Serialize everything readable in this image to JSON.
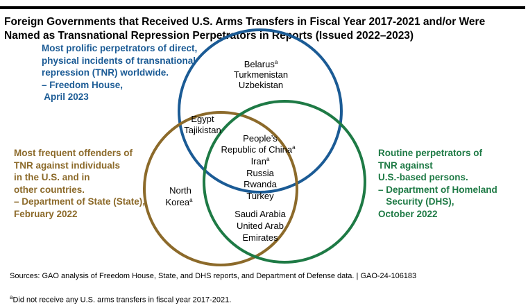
{
  "title": {
    "line1": "Foreign Governments that Received U.S. Arms Transfers in Fiscal Year 2017-2021 and/or Were",
    "line2": "Named as Transnational Repression Perpetrators in Reports (Issued 2022–2023)"
  },
  "colors": {
    "freedom_house": "#1b5b95",
    "state": "#8c6a2a",
    "dhs": "#1e7a45"
  },
  "sources_labels": {
    "freedom_house": [
      "Most prolific perpetrators of direct,",
      "physical incidents of transnational",
      "repression (TNR) worldwide.",
      "– Freedom House,",
      " April 2023"
    ],
    "state": [
      "Most frequent offenders of",
      "TNR against individuals",
      "in the U.S. and in",
      "other countries.",
      "– Department of State (State),",
      "February 2022"
    ],
    "dhs": [
      "Routine perpetrators of",
      "TNR against",
      "U.S.-based persons.",
      "– Department of Homeland",
      "   Security (DHS),",
      "October 2022"
    ]
  },
  "regions": {
    "fh_only": [
      "Belarus",
      "Turkmenistan",
      "Uzbekistan"
    ],
    "fh_state": [
      "Egypt",
      "Tajikistan"
    ],
    "all_three": [
      "People’s",
      "Republic of China",
      "Iran",
      "Russia",
      "Rwanda",
      "Turkey"
    ],
    "state_only": [
      "North",
      "Korea"
    ],
    "state_dhs": [
      "Saudi Arabia",
      "United Arab",
      "Emirates"
    ]
  },
  "footnote_marker": "a",
  "sources_note": "Sources: GAO analysis of Freedom House, State, and DHS reports, and Department of Defense data.  |  GAO-24-106183",
  "footnote": "Did not receive any U.S. arms transfers in fiscal year 2017-2021."
}
